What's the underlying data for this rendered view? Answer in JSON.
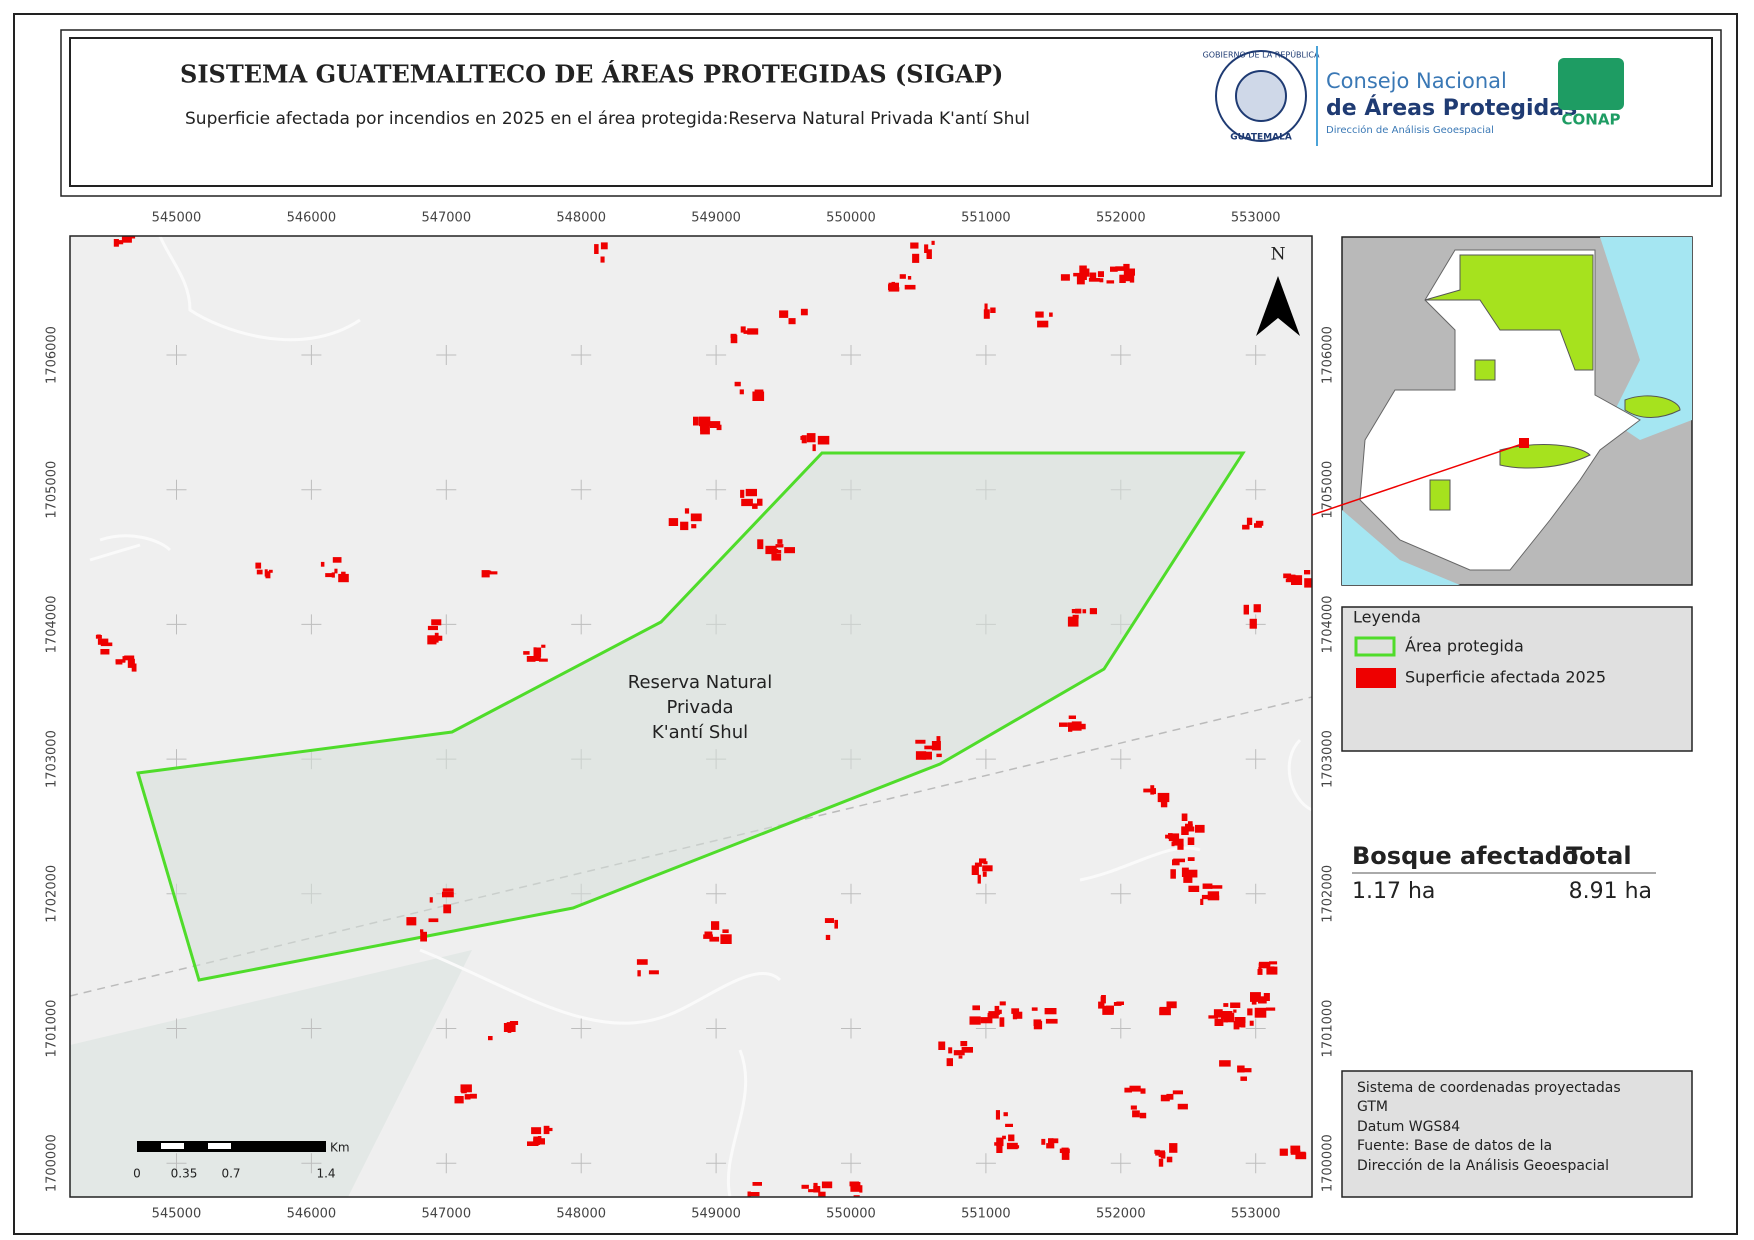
{
  "header": {
    "title": "SISTEMA GUATEMALTECO DE ÁREAS PROTEGIDAS  (SIGAP)",
    "subtitle": "Superficie afectada por incendios en 2025 en el área protegida:Reserva Natural Privada K'antí Shul",
    "logo": {
      "ring_top": "GOBIERNO DE LA REPÚBLICA",
      "ring_bottom": "GUATEMALA",
      "org_line1": "Consejo Nacional",
      "org_line2": "de Áreas Protegidas",
      "org_line3": "Dirección de Análisis Geoespacial",
      "acronym": "CONAP"
    }
  },
  "map": {
    "xticks": [
      545000,
      546000,
      547000,
      548000,
      549000,
      550000,
      551000,
      552000,
      553000
    ],
    "yticks": [
      1706000,
      1705000,
      1704000,
      1703000,
      1702000,
      1701000,
      1700000
    ],
    "north": "N",
    "area_label": [
      "Reserva Natural",
      "Privada",
      "K'antí Shul"
    ],
    "scale": {
      "labels": [
        "0",
        "0.35",
        "0.7",
        "1.4"
      ],
      "unit": "Km"
    }
  },
  "legend": {
    "title": "Leyenda",
    "items": [
      "Área protegida",
      "Superficie afectada 2025"
    ]
  },
  "table": {
    "headers": [
      "Bosque afectado",
      "Total"
    ],
    "rows": [
      [
        "1.17 ha",
        "8.91 ha"
      ]
    ]
  },
  "metadata": [
    "Sistema de coordenadas proyectadas",
    "GTM",
    "Datum WGS84",
    "Fuente: Base de datos de la",
    "Dirección de la Análisis Geoespacial"
  ]
}
